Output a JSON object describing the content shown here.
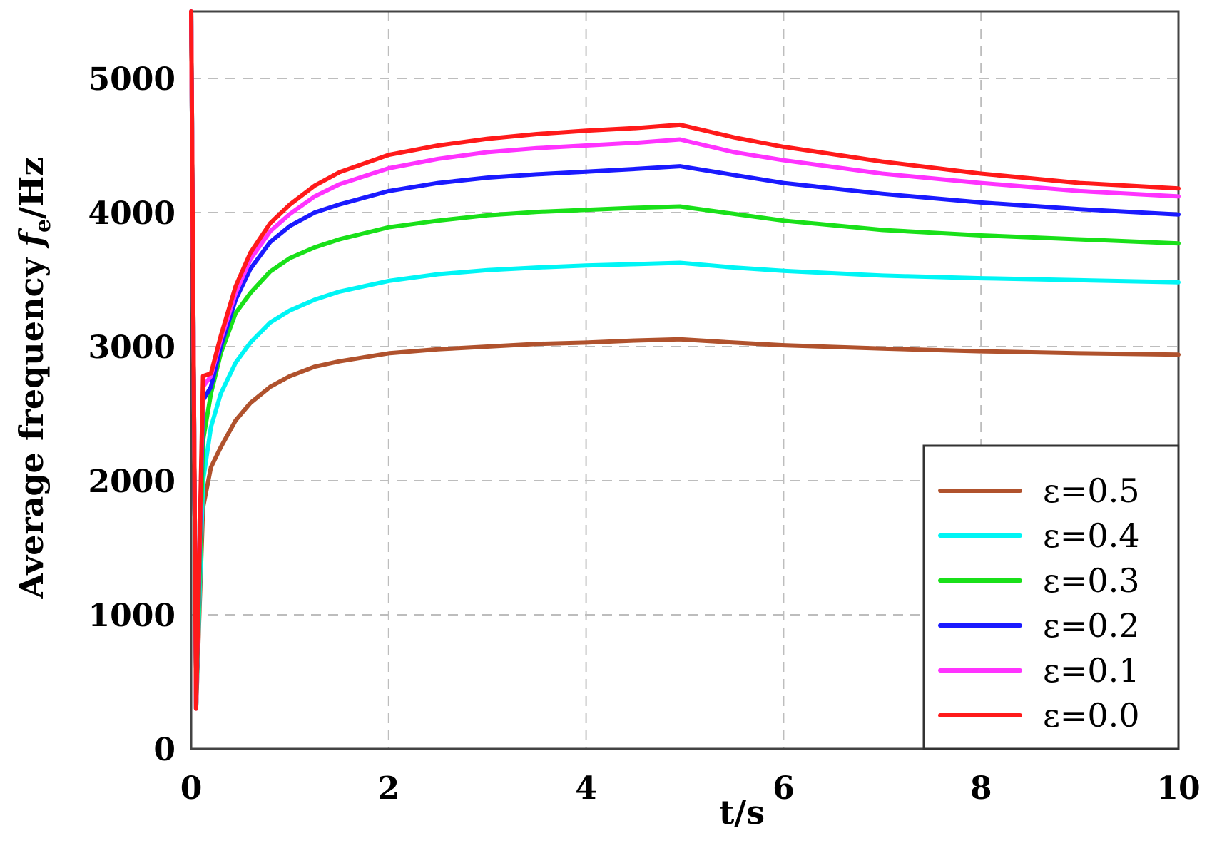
{
  "chart_data": {
    "type": "line",
    "title": "",
    "xlabel": "t/s",
    "ylabel_main": "Average frequency ",
    "ylabel_symbol": "f",
    "ylabel_subscript": "e",
    "ylabel_unit": "/Hz",
    "xlim": [
      0,
      10
    ],
    "ylim": [
      0,
      5500
    ],
    "xticks": [
      "0",
      "2",
      "4",
      "6",
      "8",
      "10"
    ],
    "yticks": [
      "0",
      "1000",
      "2000",
      "3000",
      "4000",
      "5000"
    ],
    "grid": true,
    "legend_position": "bottom-right",
    "series": [
      {
        "name": "ε=0.5",
        "color": "#b0522d",
        "x": [
          0.0,
          0.05,
          0.12,
          0.2,
          0.3,
          0.45,
          0.6,
          0.8,
          1.0,
          1.25,
          1.5,
          2.0,
          2.5,
          3.0,
          3.5,
          4.0,
          4.5,
          4.95,
          5.5,
          6.0,
          7.0,
          8.0,
          9.0,
          10.0
        ],
        "y": [
          5500,
          300,
          1800,
          2100,
          2250,
          2450,
          2580,
          2700,
          2780,
          2850,
          2890,
          2950,
          2980,
          3000,
          3020,
          3030,
          3045,
          3055,
          3030,
          3010,
          2985,
          2965,
          2950,
          2940
        ]
      },
      {
        "name": "ε=0.4",
        "color": "#00f5f5",
        "x": [
          0.0,
          0.05,
          0.12,
          0.2,
          0.3,
          0.45,
          0.6,
          0.8,
          1.0,
          1.25,
          1.5,
          2.0,
          2.5,
          3.0,
          3.5,
          4.0,
          4.5,
          4.95,
          5.5,
          6.0,
          7.0,
          8.0,
          9.0,
          10.0
        ],
        "y": [
          5500,
          300,
          2000,
          2400,
          2650,
          2880,
          3030,
          3180,
          3270,
          3350,
          3410,
          3490,
          3540,
          3570,
          3590,
          3605,
          3615,
          3625,
          3590,
          3565,
          3530,
          3510,
          3495,
          3480
        ]
      },
      {
        "name": "ε=0.3",
        "color": "#19e019",
        "x": [
          0.0,
          0.05,
          0.12,
          0.2,
          0.3,
          0.45,
          0.6,
          0.8,
          1.0,
          1.25,
          1.5,
          2.0,
          2.5,
          3.0,
          3.5,
          4.0,
          4.5,
          4.95,
          5.5,
          6.0,
          7.0,
          8.0,
          9.0,
          10.0
        ],
        "y": [
          5500,
          300,
          2300,
          2650,
          2950,
          3250,
          3400,
          3560,
          3660,
          3740,
          3800,
          3890,
          3940,
          3980,
          4005,
          4020,
          4035,
          4045,
          3990,
          3940,
          3870,
          3830,
          3800,
          3770
        ]
      },
      {
        "name": "ε=0.2",
        "color": "#1a1aff",
        "x": [
          0.0,
          0.05,
          0.12,
          0.2,
          0.3,
          0.45,
          0.6,
          0.8,
          1.0,
          1.25,
          1.5,
          2.0,
          2.5,
          3.0,
          3.5,
          4.0,
          4.5,
          4.95,
          5.5,
          6.0,
          7.0,
          8.0,
          9.0,
          10.0
        ],
        "y": [
          5500,
          300,
          2600,
          2700,
          3000,
          3350,
          3580,
          3780,
          3900,
          4000,
          4060,
          4160,
          4220,
          4260,
          4285,
          4305,
          4325,
          4345,
          4280,
          4220,
          4140,
          4075,
          4025,
          3985
        ]
      },
      {
        "name": "ε=0.1",
        "color": "#ff33ff",
        "x": [
          0.0,
          0.05,
          0.12,
          0.2,
          0.3,
          0.45,
          0.6,
          0.8,
          1.0,
          1.25,
          1.5,
          2.0,
          2.5,
          3.0,
          3.5,
          4.0,
          4.5,
          4.95,
          5.5,
          6.0,
          7.0,
          8.0,
          9.0,
          10.0
        ],
        "y": [
          5500,
          300,
          2700,
          2780,
          3050,
          3400,
          3650,
          3860,
          3990,
          4120,
          4210,
          4330,
          4400,
          4450,
          4480,
          4500,
          4520,
          4545,
          4450,
          4390,
          4290,
          4220,
          4160,
          4120
        ]
      },
      {
        "name": "ε=0.0",
        "color": "#ff1a1a",
        "x": [
          0.0,
          0.05,
          0.12,
          0.2,
          0.3,
          0.45,
          0.6,
          0.8,
          1.0,
          1.25,
          1.5,
          2.0,
          2.5,
          3.0,
          3.5,
          4.0,
          4.5,
          4.95,
          5.5,
          6.0,
          7.0,
          8.0,
          9.0,
          10.0
        ],
        "y": [
          5500,
          300,
          2780,
          2800,
          3080,
          3450,
          3700,
          3920,
          4060,
          4200,
          4300,
          4430,
          4500,
          4550,
          4585,
          4610,
          4630,
          4655,
          4560,
          4490,
          4380,
          4290,
          4220,
          4180
        ]
      }
    ]
  }
}
